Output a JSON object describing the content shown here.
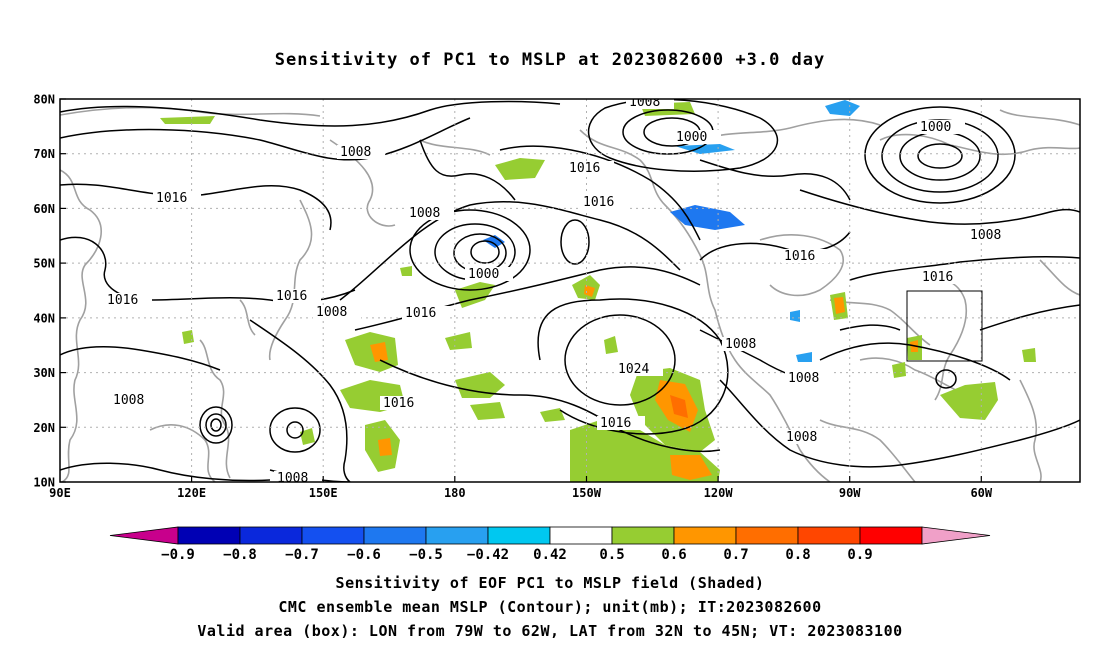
{
  "title": "Sensitivity of PC1 to MSLP at 2023082600 +3.0 day",
  "map": {
    "lat_labels": [
      "80N",
      "70N",
      "60N",
      "50N",
      "40N",
      "30N",
      "20N",
      "10N"
    ],
    "lon_labels": [
      "90E",
      "120E",
      "150E",
      "180",
      "150W",
      "120W",
      "90W",
      "60W"
    ],
    "gridlines": true,
    "valid_area_box": {
      "lon_west": "79W",
      "lon_east": "62W",
      "lat_south": "32N",
      "lat_north": "45N"
    },
    "contour_labels": [
      {
        "id": "c1008a",
        "text": "1008"
      },
      {
        "id": "c1000a",
        "text": "1000"
      },
      {
        "id": "c1000b",
        "text": "1000"
      },
      {
        "id": "c1008b",
        "text": "1008"
      },
      {
        "id": "c1016a",
        "text": "1016"
      },
      {
        "id": "c1016b",
        "text": "1016"
      },
      {
        "id": "c1016c",
        "text": "1016"
      },
      {
        "id": "c1008c",
        "text": "1008"
      },
      {
        "id": "c1008d",
        "text": "1008"
      },
      {
        "id": "c1016d",
        "text": "1016"
      },
      {
        "id": "c1000c",
        "text": "1000"
      },
      {
        "id": "c1016e",
        "text": "1016"
      },
      {
        "id": "c1016f",
        "text": "1016"
      },
      {
        "id": "c1016g",
        "text": "1016"
      },
      {
        "id": "c1008e",
        "text": "1008"
      },
      {
        "id": "c1008f",
        "text": "1008"
      },
      {
        "id": "c1016h",
        "text": "1016"
      },
      {
        "id": "c1016i",
        "text": "1016"
      },
      {
        "id": "c1008g",
        "text": "1008"
      },
      {
        "id": "c1024",
        "text": "1024"
      },
      {
        "id": "c1016j",
        "text": "1016"
      },
      {
        "id": "c1008h",
        "text": "1008"
      },
      {
        "id": "c1008i",
        "text": "1008"
      },
      {
        "id": "c1008j",
        "text": "1008"
      }
    ]
  },
  "colorbar": {
    "labels": [
      "-0.9",
      "-0.8",
      "-0.7",
      "-0.6",
      "-0.5",
      "-0.42",
      "0.42",
      "0.5",
      "0.6",
      "0.7",
      "0.8",
      "0.9"
    ],
    "colors": [
      "#c8008c",
      "#0000b4",
      "#0a28dc",
      "#1450f0",
      "#1e78f0",
      "#28a0f0",
      "#00c8f0",
      "#ffffff",
      "#96cd32",
      "#ff9600",
      "#ff6e00",
      "#ff4600",
      "#ff0000",
      "#f0a0c8"
    ]
  },
  "captions": {
    "line1": "Sensitivity of EOF PC1 to MSLP field (Shaded)",
    "line2": "CMC ensemble mean MSLP (Contour); unit(mb); IT:2023082600",
    "line3": "Valid area (box): LON from 79W to 62W, LAT from 32N to 45N; VT: 2023083100"
  }
}
